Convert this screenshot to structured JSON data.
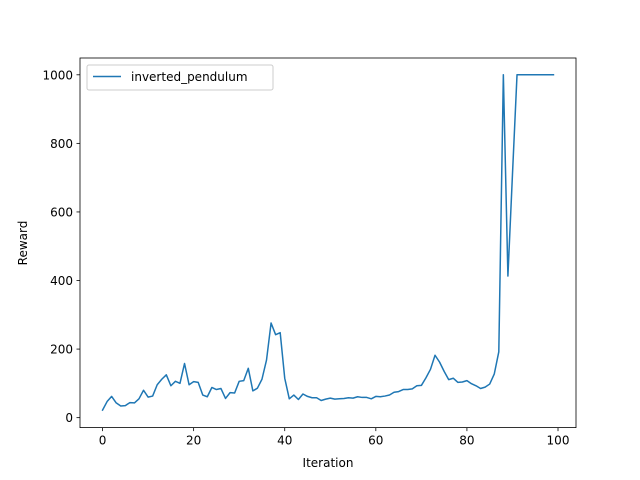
{
  "chart_data": {
    "type": "line",
    "title": "",
    "xlabel": "Iteration",
    "ylabel": "Reward",
    "xlim": [
      -4.95,
      103.95
    ],
    "ylim": [
      -29.0,
      1049.0
    ],
    "xticks": [
      0,
      20,
      40,
      60,
      80,
      100
    ],
    "yticks": [
      0,
      200,
      400,
      600,
      800,
      1000
    ],
    "grid": false,
    "legend_position": "upper left",
    "series": [
      {
        "name": "inverted_pendulum",
        "color": "#1f77b4",
        "x": [
          0,
          1,
          2,
          3,
          4,
          5,
          6,
          7,
          8,
          9,
          10,
          11,
          12,
          13,
          14,
          15,
          16,
          17,
          18,
          19,
          20,
          21,
          22,
          23,
          24,
          25,
          26,
          27,
          28,
          29,
          30,
          31,
          32,
          33,
          34,
          35,
          36,
          37,
          38,
          39,
          40,
          41,
          42,
          43,
          44,
          45,
          46,
          47,
          48,
          49,
          50,
          51,
          52,
          53,
          54,
          55,
          56,
          57,
          58,
          59,
          60,
          61,
          62,
          63,
          64,
          65,
          66,
          67,
          68,
          69,
          70,
          71,
          72,
          73,
          74,
          75,
          76,
          77,
          78,
          79,
          80,
          81,
          82,
          83,
          84,
          85,
          86,
          87,
          88,
          89,
          90,
          91,
          92,
          93,
          94,
          95,
          96,
          97,
          98,
          99
        ],
        "y": [
          22,
          47,
          62,
          43,
          34,
          35,
          44,
          43,
          55,
          80,
          60,
          63,
          96,
          112,
          125,
          93,
          106,
          100,
          158,
          96,
          105,
          103,
          66,
          61,
          88,
          82,
          85,
          56,
          73,
          72,
          106,
          108,
          144,
          78,
          86,
          112,
          168,
          276,
          242,
          248,
          115,
          55,
          66,
          53,
          69,
          62,
          58,
          58,
          50,
          54,
          57,
          54,
          55,
          56,
          58,
          57,
          61,
          59,
          59,
          55,
          62,
          61,
          63,
          66,
          74,
          76,
          82,
          82,
          84,
          93,
          94,
          116,
          141,
          182,
          162,
          135,
          111,
          115,
          103,
          104,
          108,
          99,
          93,
          85,
          89,
          98,
          127,
          192,
          1000,
          413,
          709,
          1000,
          1000,
          1000,
          1000,
          1000,
          1000,
          1000,
          1000,
          1000
        ]
      }
    ]
  }
}
